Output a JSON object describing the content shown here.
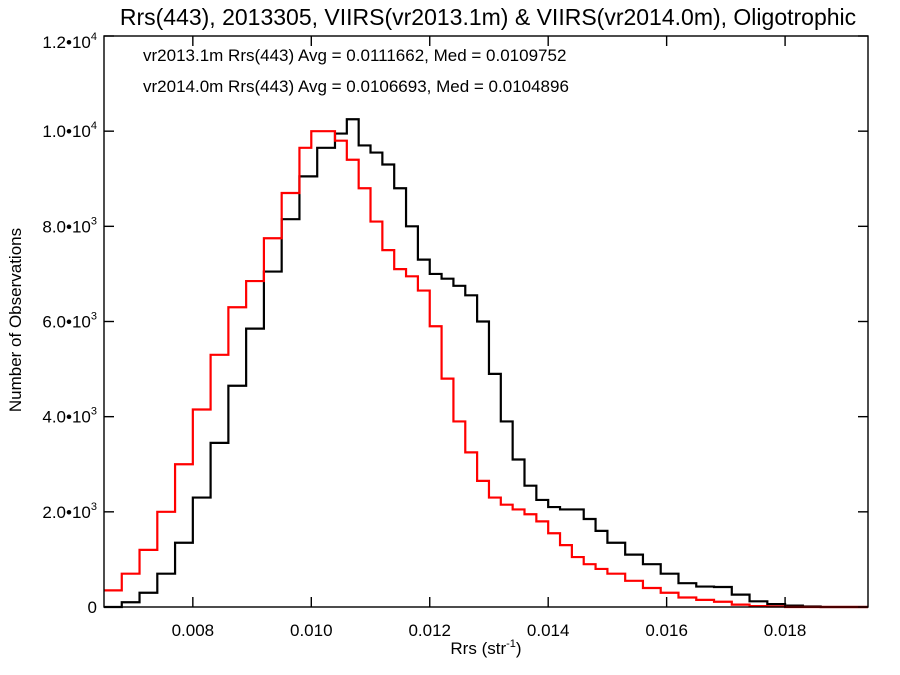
{
  "chart_data": {
    "type": "line",
    "step": true,
    "title": "Rrs(443), 2013305, VIIRS(vr2013.1m) & VIIRS(vr2014.0m), Oligotrophic",
    "xlabel": {
      "base": "Rrs (str",
      "sup": "-1",
      "tail": ")"
    },
    "ylabel": "Number of Observations",
    "xlim": [
      0.0065,
      0.0194
    ],
    "ylim": [
      0,
      12000
    ],
    "x_ticks": [
      {
        "value": 0.008,
        "label": "0.008"
      },
      {
        "value": 0.01,
        "label": "0.010"
      },
      {
        "value": 0.012,
        "label": "0.012"
      },
      {
        "value": 0.014,
        "label": "0.014"
      },
      {
        "value": 0.016,
        "label": "0.016"
      },
      {
        "value": 0.018,
        "label": "0.018"
      }
    ],
    "y_ticks": [
      {
        "value": 0,
        "mant": "0",
        "exp": ""
      },
      {
        "value": 2000,
        "mant": "2.0•10",
        "exp": "3"
      },
      {
        "value": 4000,
        "mant": "4.0•10",
        "exp": "3"
      },
      {
        "value": 6000,
        "mant": "6.0•10",
        "exp": "3"
      },
      {
        "value": 8000,
        "mant": "8.0•10",
        "exp": "3"
      },
      {
        "value": 10000,
        "mant": "1.0•10",
        "exp": "4"
      },
      {
        "value": 12000,
        "mant": "1.2•10",
        "exp": "4"
      }
    ],
    "series": [
      {
        "name": "vr2013.1m",
        "color": "#000000",
        "legend": "vr2013.1m Rrs(443) Avg = 0.0111662, Med = 0.0109752",
        "x": [
          0.0065,
          0.0068,
          0.0071,
          0.0074,
          0.0077,
          0.008,
          0.0083,
          0.0086,
          0.0089,
          0.0092,
          0.0095,
          0.0098,
          0.0101,
          0.0104,
          0.0106,
          0.0108,
          0.011,
          0.0112,
          0.0114,
          0.0116,
          0.0118,
          0.012,
          0.0122,
          0.0124,
          0.0126,
          0.0128,
          0.013,
          0.0132,
          0.0134,
          0.0136,
          0.0138,
          0.014,
          0.0142,
          0.0144,
          0.0146,
          0.0148,
          0.015,
          0.0153,
          0.0156,
          0.0159,
          0.0162,
          0.0165,
          0.0168,
          0.0171,
          0.0174,
          0.0177,
          0.018,
          0.0183,
          0.0186,
          0.019,
          0.0194
        ],
        "y": [
          0,
          100,
          300,
          700,
          1350,
          2300,
          3450,
          4650,
          5850,
          7050,
          8150,
          9050,
          9650,
          9950,
          10250,
          9700,
          9550,
          9300,
          8800,
          8000,
          7300,
          7000,
          6900,
          6750,
          6550,
          6000,
          4900,
          3900,
          3100,
          2550,
          2250,
          2100,
          2050,
          2050,
          1850,
          1600,
          1350,
          1100,
          900,
          700,
          500,
          430,
          420,
          260,
          120,
          60,
          30,
          10,
          0,
          0,
          0
        ]
      },
      {
        "name": "vr2014.0m",
        "color": "#ff0000",
        "legend": "vr2014.0m Rrs(443) Avg = 0.0106693, Med = 0.0104896",
        "x": [
          0.0065,
          0.0068,
          0.0071,
          0.0074,
          0.0077,
          0.008,
          0.0083,
          0.0086,
          0.0089,
          0.0092,
          0.0095,
          0.0098,
          0.01,
          0.0102,
          0.0104,
          0.0106,
          0.0108,
          0.011,
          0.0112,
          0.0114,
          0.0116,
          0.0118,
          0.012,
          0.0122,
          0.0124,
          0.0126,
          0.0128,
          0.013,
          0.0132,
          0.0134,
          0.0136,
          0.0138,
          0.014,
          0.0142,
          0.0144,
          0.0146,
          0.0148,
          0.015,
          0.0153,
          0.0156,
          0.0159,
          0.0162,
          0.0165,
          0.0168,
          0.0171,
          0.0174,
          0.0177,
          0.018,
          0.0183,
          0.0186,
          0.019,
          0.0194
        ],
        "y": [
          350,
          700,
          1200,
          2000,
          3000,
          4150,
          5300,
          6300,
          6850,
          7750,
          8700,
          9650,
          10000,
          10000,
          9800,
          9400,
          8800,
          8100,
          7500,
          7100,
          6950,
          6650,
          5900,
          4800,
          3900,
          3250,
          2650,
          2300,
          2150,
          2050,
          1950,
          1800,
          1550,
          1300,
          1050,
          900,
          800,
          700,
          550,
          400,
          300,
          200,
          150,
          110,
          50,
          20,
          10,
          0,
          0,
          0,
          0,
          0
        ]
      }
    ]
  }
}
